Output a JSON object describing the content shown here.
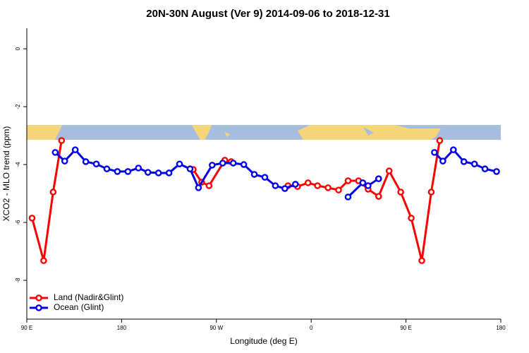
{
  "chart_data": {
    "type": "line",
    "title": "20N-30N August (Ver 9)   2014-09-06 to 2018-12-31",
    "x_label": "Longitude (deg E)",
    "y_label": "XCO2 - MLO trend (ppm)",
    "xlim": [
      90,
      540
    ],
    "xticks": [
      {
        "value": 90,
        "label": "90 E"
      },
      180,
      {
        "value": 270,
        "label": "90 W"
      },
      {
        "value": 360,
        "label": "0"
      },
      {
        "value": 450,
        "label": "90 E"
      },
      {
        "value": 540,
        "label": "180"
      }
    ],
    "ylim": [
      -9.34,
      0.71
    ],
    "yticks": [
      0,
      -2,
      -4,
      -6,
      -8
    ],
    "legend": "bottom-left",
    "series": [
      {
        "name": "Land (Nadir&Glint)",
        "color": "#ff0000",
        "x": [
          95,
          106,
          115,
          123,
          200,
          248,
          256,
          263,
          278,
          284,
          310,
          338,
          347,
          357,
          366,
          376,
          386,
          395,
          405,
          414,
          424,
          434,
          445,
          455,
          465,
          474,
          482
        ],
        "values": [
          -5.85,
          -7.32,
          -4.95,
          -3.17,
          null,
          -4.17,
          -4.61,
          -4.73,
          -3.85,
          -3.9,
          null,
          -4.73,
          -4.76,
          -4.63,
          -4.73,
          -4.8,
          -4.88,
          -4.56,
          -4.56,
          -4.85,
          -5.1,
          -4.22,
          -4.95,
          -5.85,
          -7.32,
          -4.95,
          -3.17
        ]
      },
      {
        "name": "Ocean (Glint)",
        "color": "#0000ee",
        "x": [
          117,
          126,
          136,
          146,
          156,
          166,
          176,
          186,
          196,
          205,
          215,
          225,
          235,
          245,
          253,
          266,
          276,
          286,
          296,
          306,
          316,
          326,
          335,
          345,
          370,
          395,
          409,
          414,
          424,
          450,
          477,
          485,
          495,
          505,
          515,
          525,
          536
        ],
        "values": [
          -3.58,
          -3.88,
          -3.49,
          -3.9,
          -3.98,
          -4.15,
          -4.24,
          -4.24,
          -4.12,
          -4.27,
          -4.29,
          -4.29,
          -3.98,
          -4.15,
          -4.8,
          -4.02,
          -3.95,
          -3.95,
          -4.0,
          -4.34,
          -4.44,
          -4.73,
          -4.83,
          -4.68,
          null,
          -5.12,
          -4.63,
          -4.73,
          -4.49,
          null,
          -3.58,
          -3.88,
          -3.49,
          -3.9,
          -3.98,
          -4.15,
          -4.24
        ]
      }
    ]
  }
}
